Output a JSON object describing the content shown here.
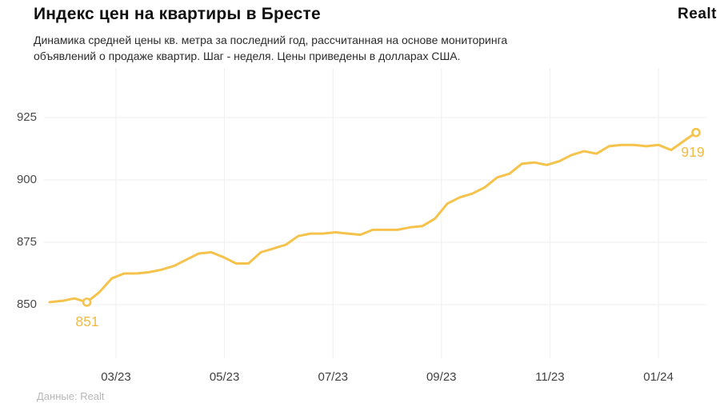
{
  "header": {
    "title": "Индекс цен на квартиры в Бресте",
    "subtitle_line1": "Динамика средней цены кв. метра за последний год, рассчитанная на основе мониторинга",
    "subtitle_line2": "объявлений о продаже квартир. Шаг - неделя. Цены приведены в долларах США.",
    "logo_text": "Realt"
  },
  "footer": {
    "source_label": "Данные: Realt"
  },
  "colors": {
    "line": "#F5C34C",
    "marker_fill": "#FFFFFF",
    "point_label": "#F1BB45",
    "grid": "#EFEFEF",
    "axis_text": "#4A4A4A",
    "background": "#FFFFFF"
  },
  "chart_data": {
    "type": "line",
    "title": "Индекс цен на квартиры в Бресте",
    "values": [
      851,
      851.5,
      852.5,
      851,
      855,
      860.5,
      862.5,
      862.5,
      863,
      864,
      865.5,
      868,
      870.5,
      871,
      869,
      866.5,
      866.5,
      871,
      872.5,
      874,
      877.5,
      878.5,
      878.5,
      879,
      878.5,
      878,
      880,
      880,
      880,
      881,
      881.5,
      884.5,
      890.5,
      893,
      894.5,
      897,
      901,
      902.5,
      906.5,
      907,
      906,
      907.5,
      910,
      911.5,
      910.5,
      913.5,
      914,
      914,
      913.5,
      914,
      912,
      915.5,
      919
    ],
    "first_point": {
      "index": 3,
      "value": 851,
      "label": "851"
    },
    "last_point": {
      "index": 52,
      "value": 919,
      "label": "919"
    },
    "y_ticks": [
      850,
      875,
      900,
      925
    ],
    "ylim": [
      828,
      945
    ],
    "x_ticks": [
      {
        "label": "03/23",
        "index": 5.34
      },
      {
        "label": "05/23",
        "index": 14.07
      },
      {
        "label": "07/23",
        "index": 22.8
      },
      {
        "label": "09/23",
        "index": 31.52
      },
      {
        "label": "11/23",
        "index": 40.25
      },
      {
        "label": "01/24",
        "index": 48.98
      }
    ],
    "grid": true,
    "legend": false
  }
}
